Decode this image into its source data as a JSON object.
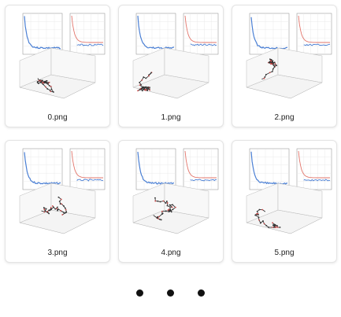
{
  "files": [
    {
      "name": "0.png"
    },
    {
      "name": "1.png"
    },
    {
      "name": "2.png"
    },
    {
      "name": "3.png"
    },
    {
      "name": "4.png"
    },
    {
      "name": "5.png"
    }
  ],
  "more_indicator": "• • •",
  "colors": {
    "energy_line": "#4a7fd4",
    "accent_line": "#e2746a",
    "chain": "#222222",
    "chain_point": "#d04a4a"
  }
}
